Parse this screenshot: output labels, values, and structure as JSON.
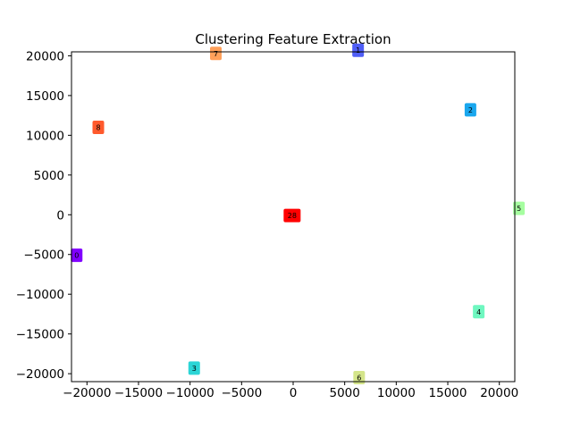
{
  "chart_data": {
    "type": "scatter",
    "title": "Clustering Feature Extraction",
    "xlabel": "",
    "ylabel": "",
    "xlim": [
      -21500,
      21500
    ],
    "ylim": [
      -21000,
      20500
    ],
    "grid": false,
    "legend": "none",
    "x_ticks": [
      -20000,
      -15000,
      -10000,
      -5000,
      0,
      5000,
      10000,
      15000,
      20000
    ],
    "x_tick_labels": [
      "−20000",
      "−15000",
      "−10000",
      "−5000",
      "0",
      "5000",
      "10000",
      "15000",
      "20000"
    ],
    "y_ticks": [
      20000,
      15000,
      10000,
      5000,
      0,
      -5000,
      -10000,
      -15000,
      -20000
    ],
    "y_tick_labels": [
      "20000",
      "15000",
      "10000",
      "5000",
      "0",
      "−5000",
      "−10000",
      "−15000",
      "−20000"
    ],
    "points": [
      {
        "label": "0",
        "x": -21000,
        "y": -5100,
        "color": "#8000ff"
      },
      {
        "label": "1",
        "x": 6300,
        "y": 20700,
        "color": "#4f5ef6"
      },
      {
        "label": "2",
        "x": 17200,
        "y": 13200,
        "color": "#1aa7ee"
      },
      {
        "label": "3",
        "x": -9600,
        "y": -19300,
        "color": "#2cd5d6"
      },
      {
        "label": "4",
        "x": 18000,
        "y": -12200,
        "color": "#6ff7c0"
      },
      {
        "label": "5",
        "x": 21900,
        "y": 800,
        "color": "#a6fea0"
      },
      {
        "label": "6",
        "x": 6400,
        "y": -20500,
        "color": "#d4e58a"
      },
      {
        "label": "7",
        "x": -7500,
        "y": 20300,
        "color": "#ffa05a"
      },
      {
        "label": "8",
        "x": -18900,
        "y": 11000,
        "color": "#ff5a2d"
      },
      {
        "label": "28",
        "x": -100,
        "y": -100,
        "color": "#ff0000"
      }
    ]
  }
}
